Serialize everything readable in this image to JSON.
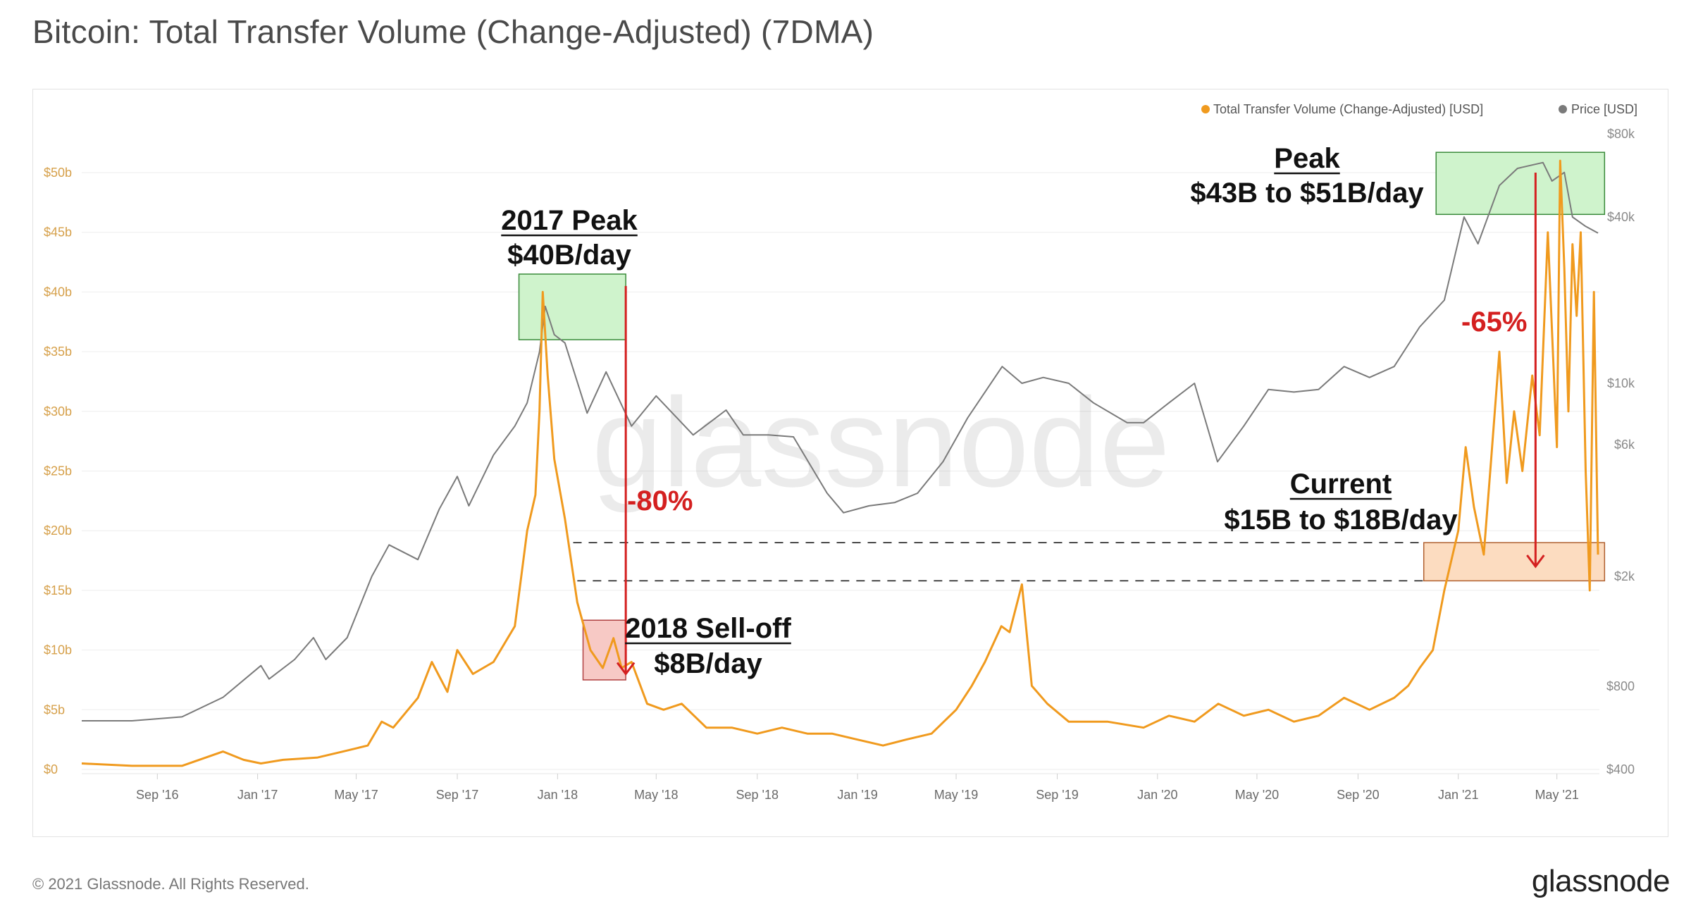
{
  "title": "Bitcoin: Total Transfer Volume (Change-Adjusted) (7DMA)",
  "footer": {
    "copyright": "© 2021 Glassnode. All Rights Reserved.",
    "logo": "glassnode"
  },
  "watermark": "glassnode",
  "colors": {
    "volume": "#f09a1e",
    "price": "#7a7a7a",
    "left_axis": "#d6a04a",
    "right_axis": "#8a8a8a",
    "arrow": "#d42020",
    "peak_box": "#cff3cc",
    "selloff_box": "#f7c9c5",
    "current_box": "#fcdcc0"
  },
  "chart_data": {
    "type": "line",
    "x_labels": [
      "Sep '16",
      "Jan '17",
      "May '17",
      "Sep '17",
      "Jan '18",
      "May '18",
      "Sep '18",
      "Jan '19",
      "May '19",
      "Sep '19",
      "Jan '20",
      "May '20",
      "Sep '20",
      "Jan '21",
      "May '21"
    ],
    "y_left": {
      "unit": "USD",
      "ticks": [
        "$0",
        "$5b",
        "$10b",
        "$15b",
        "$20b",
        "$25b",
        "$30b",
        "$35b",
        "$40b",
        "$45b",
        "$50b"
      ],
      "range": [
        0,
        50
      ]
    },
    "y_right": {
      "unit": "USD",
      "scale": "log",
      "ticks": [
        "$400",
        "$800",
        "$2k",
        "$6k",
        "$10k",
        "$40k",
        "$80k"
      ]
    },
    "legend": {
      "position": "top-right",
      "items": [
        "Total Transfer Volume (Change-Adjusted) [USD]",
        "Price [USD]"
      ]
    },
    "grid": true,
    "series": [
      {
        "name": "Total Transfer Volume (Change-Adjusted) [USD]",
        "axis": "left",
        "x": [
          "2016-06-01",
          "2016-08-01",
          "2016-10-01",
          "2016-11-20",
          "2016-12-15",
          "2017-01-05",
          "2017-02-01",
          "2017-03-15",
          "2017-04-15",
          "2017-05-15",
          "2017-06-01",
          "2017-06-15",
          "2017-07-15",
          "2017-08-01",
          "2017-08-20",
          "2017-09-01",
          "2017-09-20",
          "2017-10-15",
          "2017-11-10",
          "2017-11-25",
          "2017-12-05",
          "2017-12-10",
          "2017-12-14",
          "2017-12-20",
          "2017-12-28",
          "2018-01-10",
          "2018-01-25",
          "2018-02-10",
          "2018-02-25",
          "2018-03-10",
          "2018-03-20",
          "2018-04-01",
          "2018-04-20",
          "2018-05-10",
          "2018-06-01",
          "2018-07-01",
          "2018-08-01",
          "2018-09-01",
          "2018-10-01",
          "2018-11-01",
          "2018-12-01",
          "2019-01-01",
          "2019-02-01",
          "2019-03-01",
          "2019-04-01",
          "2019-05-01",
          "2019-05-20",
          "2019-06-05",
          "2019-06-25",
          "2019-07-05",
          "2019-07-20",
          "2019-08-01",
          "2019-08-20",
          "2019-09-15",
          "2019-11-01",
          "2019-12-15",
          "2020-01-15",
          "2020-02-15",
          "2020-03-15",
          "2020-04-15",
          "2020-05-15",
          "2020-06-15",
          "2020-07-15",
          "2020-08-15",
          "2020-09-15",
          "2020-10-15",
          "2020-11-01",
          "2020-11-15",
          "2020-12-01",
          "2020-12-15",
          "2021-01-01",
          "2021-01-10",
          "2021-01-20",
          "2021-02-01",
          "2021-02-10",
          "2021-02-20",
          "2021-03-01",
          "2021-03-10",
          "2021-03-20",
          "2021-04-01",
          "2021-04-10",
          "2021-04-20",
          "2021-05-01",
          "2021-05-05",
          "2021-05-10",
          "2021-05-15",
          "2021-05-20",
          "2021-05-25",
          "2021-05-30",
          "2021-06-05",
          "2021-06-10",
          "2021-06-15",
          "2021-06-20"
        ],
        "y": [
          0.5,
          0.3,
          0.3,
          1.5,
          0.8,
          0.5,
          0.8,
          1.0,
          1.5,
          2.0,
          4.0,
          3.5,
          6.0,
          9.0,
          6.5,
          10.0,
          8.0,
          9.0,
          12.0,
          20.0,
          23.0,
          30.0,
          40.0,
          33.0,
          26.0,
          21.0,
          14.0,
          10.0,
          8.5,
          11.0,
          8.5,
          9.0,
          5.5,
          5.0,
          5.5,
          3.5,
          3.5,
          3.0,
          3.5,
          3.0,
          3.0,
          2.5,
          2.0,
          2.5,
          3.0,
          5.0,
          7.0,
          9.0,
          12.0,
          11.5,
          15.5,
          7.0,
          5.5,
          4.0,
          4.0,
          3.5,
          4.5,
          4.0,
          5.5,
          4.5,
          5.0,
          4.0,
          4.5,
          6.0,
          5.0,
          6.0,
          7.0,
          8.5,
          10.0,
          15.0,
          20.0,
          27.0,
          22.0,
          18.0,
          26.0,
          35.0,
          24.0,
          30.0,
          25.0,
          33.0,
          28.0,
          45.0,
          27.0,
          51.0,
          42.0,
          30.0,
          44.0,
          38.0,
          45.0,
          25.0,
          15.0,
          40.0,
          18.0
        ]
      },
      {
        "name": "Price [USD]",
        "axis": "right",
        "x": [
          "2016-06-01",
          "2016-08-01",
          "2016-10-01",
          "2016-11-20",
          "2017-01-05",
          "2017-01-15",
          "2017-02-15",
          "2017-03-10",
          "2017-03-25",
          "2017-04-20",
          "2017-05-20",
          "2017-06-10",
          "2017-07-15",
          "2017-08-10",
          "2017-09-01",
          "2017-09-15",
          "2017-10-15",
          "2017-11-10",
          "2017-11-25",
          "2017-12-10",
          "2017-12-17",
          "2017-12-28",
          "2018-01-10",
          "2018-02-06",
          "2018-03-01",
          "2018-04-01",
          "2018-05-01",
          "2018-06-15",
          "2018-07-25",
          "2018-08-15",
          "2018-09-15",
          "2018-10-15",
          "2018-11-25",
          "2018-12-15",
          "2019-01-15",
          "2019-02-15",
          "2019-03-15",
          "2019-04-15",
          "2019-05-15",
          "2019-06-26",
          "2019-07-20",
          "2019-08-15",
          "2019-09-15",
          "2019-10-15",
          "2019-11-25",
          "2019-12-15",
          "2020-01-15",
          "2020-02-15",
          "2020-03-14",
          "2020-04-15",
          "2020-05-15",
          "2020-06-15",
          "2020-07-15",
          "2020-08-15",
          "2020-09-15",
          "2020-10-15",
          "2020-11-15",
          "2020-12-15",
          "2021-01-08",
          "2021-01-25",
          "2021-02-20",
          "2021-03-14",
          "2021-04-14",
          "2021-04-25",
          "2021-05-10",
          "2021-05-20",
          "2021-06-05",
          "2021-06-20"
        ],
        "y": [
          600,
          600,
          620,
          730,
          950,
          850,
          1000,
          1200,
          1000,
          1200,
          2000,
          2600,
          2300,
          3500,
          4600,
          3600,
          5500,
          7000,
          8500,
          13000,
          19000,
          15000,
          14000,
          7800,
          11000,
          7000,
          9000,
          6500,
          8000,
          6500,
          6500,
          6400,
          4000,
          3400,
          3600,
          3700,
          4000,
          5200,
          7500,
          11500,
          10000,
          10500,
          10000,
          8500,
          7200,
          7200,
          8500,
          10000,
          5200,
          7000,
          9500,
          9300,
          9500,
          11500,
          10500,
          11500,
          16000,
          20000,
          40000,
          32000,
          52000,
          60000,
          63000,
          54000,
          58000,
          40000,
          37000,
          35000
        ]
      }
    ],
    "annotations": [
      {
        "title": "2017 Peak",
        "value": "$40B/day"
      },
      {
        "title": "Peak",
        "value": "$43B to $51B/day"
      },
      {
        "title": "2018 Sell-off",
        "value": "$8B/day"
      },
      {
        "title": "Current",
        "value": "$15B to $18B/day"
      },
      {
        "label": "-80%"
      },
      {
        "label": "-65%"
      }
    ]
  }
}
